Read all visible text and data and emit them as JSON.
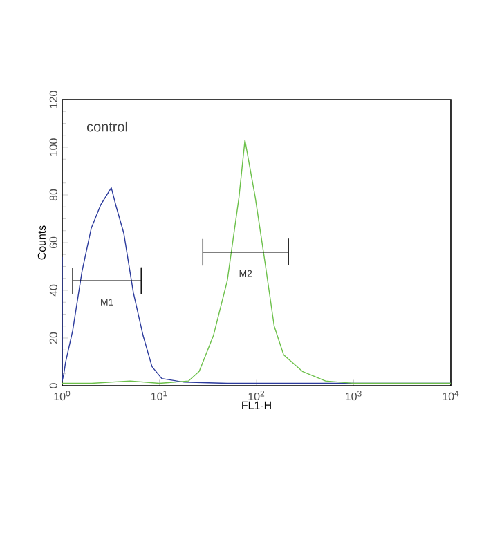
{
  "chart_data": {
    "type": "line",
    "xlabel": "FL1-H",
    "ylabel": "Counts",
    "log": "x",
    "marker": "none",
    "line_style": "solid",
    "xlim": [
      1,
      10000
    ],
    "ylim": [
      0,
      120
    ],
    "xticks": [
      {
        "value": 1,
        "label": "10$^{0}$"
      },
      {
        "value": 10,
        "label": "10$^{1}$"
      },
      {
        "value": 100,
        "label": "10$^{2}$"
      },
      {
        "value": 1000,
        "label": "10$^{3}$"
      },
      {
        "value": 10000,
        "label": "10$^{4}$"
      }
    ],
    "yticks": [
      0,
      20,
      40,
      60,
      80,
      100,
      120
    ],
    "series": [
      {
        "color": "#2b3a9c",
        "x": [
          1.0,
          1.0,
          1.04,
          1.08,
          1.28,
          1.6,
          1.99,
          2.5,
          3.2,
          3.6,
          4.3,
          5.4,
          6.8,
          8.4,
          10.6,
          18,
          50,
          200,
          1000,
          5000,
          10000
        ],
        "values": [
          54,
          2,
          5,
          9.6,
          23,
          48,
          66,
          76,
          83,
          75,
          64,
          39,
          21,
          8,
          3,
          1.5,
          1,
          1,
          1,
          1,
          1
        ]
      },
      {
        "color": "#6cc04a",
        "x": [
          1.0,
          2,
          5,
          10,
          20,
          25.7,
          36,
          50,
          66,
          76,
          97,
          122,
          152,
          190,
          297,
          513,
          1000,
          3000,
          10000
        ],
        "values": [
          1,
          1,
          2,
          1,
          2,
          6,
          21,
          44,
          79,
          103,
          79,
          52,
          25,
          13,
          6,
          2,
          1,
          1,
          1
        ]
      },
      {
        "type": "line",
        "color": "#000000",
        "x": [
          1.28,
          1.28,
          1.28,
          6.5,
          6.5,
          6.5
        ],
        "values": [
          49.5,
          38.5,
          44,
          44,
          49.5,
          38.5
        ]
      },
      {
        "type": "line",
        "color": "#000000",
        "x": [
          28,
          28,
          28,
          213,
          213,
          213
        ],
        "values": [
          61.5,
          50.5,
          56,
          56,
          61.5,
          50.5
        ]
      }
    ],
    "annotations": [
      "control",
      "M1",
      "M2"
    ]
  }
}
